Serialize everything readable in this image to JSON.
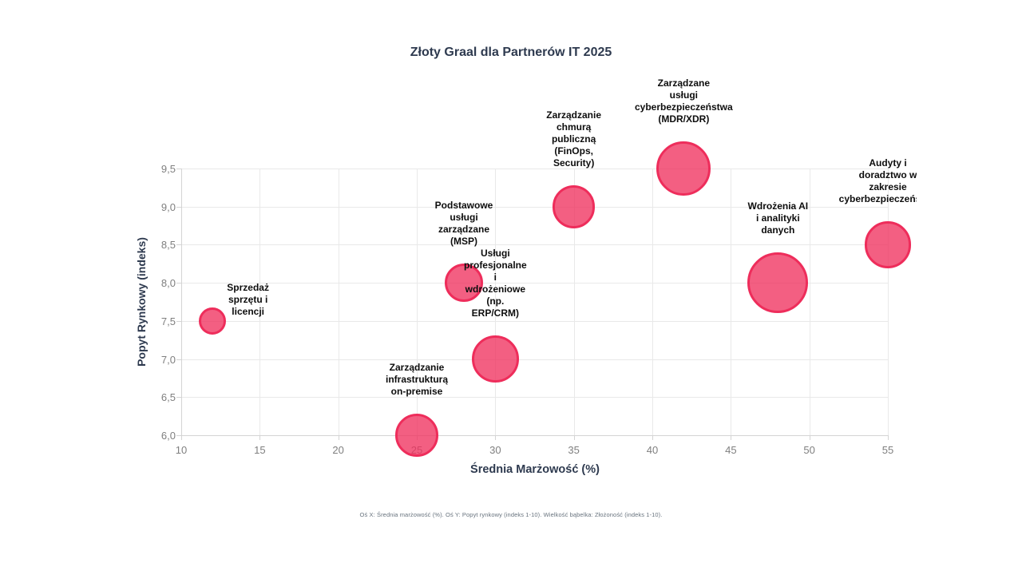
{
  "chart_data": {
    "type": "bubble",
    "title": "Złoty Graal dla Partnerów IT 2025",
    "xlabel": "Średnia Marżowość (%)",
    "ylabel": "Popyt Rynkowy (indeks)",
    "footnote": "Oś X: Średnia marżowość (%). Oś Y: Popyt rynkowy (indeks 1-10). Wielkość bąbelka: Złożoność (indeks 1-10).",
    "xlim": [
      10,
      55
    ],
    "ylim": [
      6.0,
      9.5
    ],
    "grid": true,
    "legend_position": "none",
    "x_ticks": [
      10,
      15,
      20,
      25,
      30,
      35,
      40,
      45,
      50,
      55
    ],
    "y_ticks": [
      6.0,
      6.5,
      7.0,
      7.5,
      8.0,
      8.5,
      9.0,
      9.5
    ],
    "y_tick_labels": [
      "6,0",
      "6,5",
      "7,0",
      "7,5",
      "8,0",
      "8,5",
      "9,0",
      "9,5"
    ],
    "size_legend": "Złożoność (indeks 1-10)",
    "points": [
      {
        "label": "Sprzedaż sprzętu i licencji",
        "label_lines": [
          "Sprzedaż",
          "sprzętu i",
          "licencji"
        ],
        "x": 12,
        "y": 7.5,
        "size": 2,
        "label_align": "right"
      },
      {
        "label": "Zarządzanie infrastrukturą on-premise",
        "label_lines": [
          "Zarządzanie",
          "infrastrukturą",
          "on-premise"
        ],
        "x": 25,
        "y": 6.0,
        "size": 5,
        "label_align": "top"
      },
      {
        "label": "Podstawowe usługi zarządzane (MSP)",
        "label_lines": [
          "Podstawowe",
          "usługi",
          "zarządzane",
          "(MSP)"
        ],
        "x": 28,
        "y": 8.0,
        "size": 4,
        "label_align": "top"
      },
      {
        "label": "Usługi profesjonalne i wdrożeniowe (np. ERP/CRM)",
        "label_lines": [
          "Usługi",
          "profesjonalne",
          "i",
          "wdrożeniowe",
          "(np.",
          "ERP/CRM)"
        ],
        "x": 30,
        "y": 7.0,
        "size": 6,
        "label_align": "top"
      },
      {
        "label": "Zarządzanie chmurą publiczną (FinOps, Security)",
        "label_lines": [
          "Zarządzanie",
          "chmurą",
          "publiczną",
          "(FinOps,",
          "Security)"
        ],
        "x": 35,
        "y": 9.0,
        "size": 5,
        "label_align": "top"
      },
      {
        "label": "Zarządzane usługi cyberbezpieczeństwa (MDR/XDR)",
        "label_lines": [
          "Zarządzane",
          "usługi",
          "cyberbezpieczeństwa",
          "(MDR/XDR)"
        ],
        "x": 42,
        "y": 9.5,
        "size": 8,
        "label_align": "top"
      },
      {
        "label": "Wdrożenia AI i analityki danych",
        "label_lines": [
          "Wdrożenia AI",
          "i analityki",
          "danych"
        ],
        "x": 48,
        "y": 8.0,
        "size": 10,
        "label_align": "top"
      },
      {
        "label": "Audyty i doradztwo w zakresie cyberbezpieczeństwa",
        "label_lines": [
          "Audyty i",
          "doradztwo w",
          "zakresie",
          "cyberbezpieczeństwa"
        ],
        "x": 55,
        "y": 8.5,
        "size": 6,
        "label_align": "top"
      }
    ]
  },
  "colors": {
    "background": "#ffffff",
    "bubble_fill": "rgba(240,50,95,0.78)",
    "bubble_border": "#ee2d5b",
    "grid_line": "#e9e9e9",
    "axis_line": "#d4d4d4",
    "tick_text": "#7f7f7f",
    "heading_text": "#2e3a4f",
    "bubble_label_text": "#0d0d0d",
    "footnote_text": "#68737e"
  }
}
